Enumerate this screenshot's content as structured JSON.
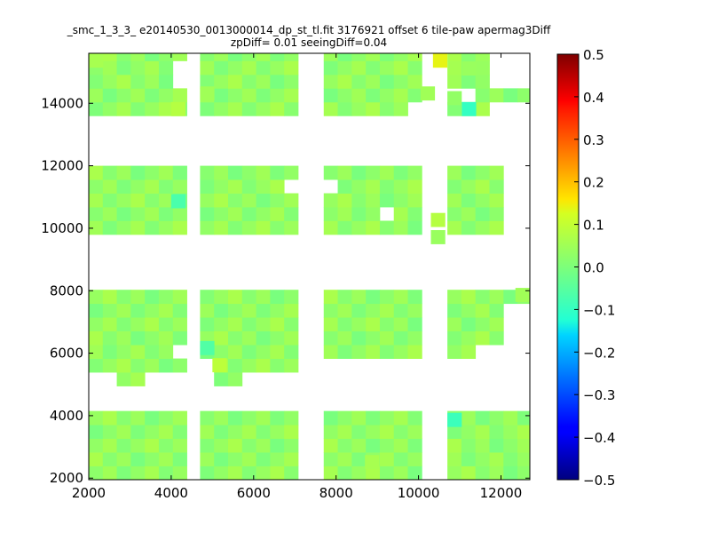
{
  "chart_data": {
    "type": "heatmap",
    "title": "_smc_1_3_3_ e20140530_0013000014_dp_st_tl.fit 3176921 offset 6 tile-paw apermag3Diff",
    "subtitle": "zpDiff= 0.01 seeingDiff=0.04",
    "xlabel": "",
    "ylabel": "",
    "xlim": [
      2000,
      12700
    ],
    "ylim": [
      1950,
      15600
    ],
    "x_ticks": [
      2000,
      4000,
      6000,
      8000,
      10000,
      12000
    ],
    "y_ticks": [
      2000,
      4000,
      6000,
      8000,
      10000,
      12000,
      14000
    ],
    "x_tick_labels": [
      "2000",
      "4000",
      "6000",
      "8000",
      "10000",
      "12000"
    ],
    "y_tick_labels": [
      "2000",
      "4000",
      "6000",
      "8000",
      "10000",
      "12000",
      "14000"
    ],
    "cell_size": [
      340,
      440
    ],
    "grid": false,
    "colorbar": {
      "colormap": "jet",
      "range": [
        -0.5,
        0.5
      ],
      "ticks": [
        0.5,
        0.4,
        0.3,
        0.2,
        0.1,
        0.0,
        -0.1,
        -0.2,
        -0.3,
        -0.4,
        -0.5
      ],
      "tick_labels": [
        "0.5",
        "0.4",
        "0.3",
        "0.2",
        "0.1",
        "0.0",
        "−0.1",
        "−0.2",
        "−0.3",
        "−0.4",
        "−0.5"
      ]
    },
    "tile_columns": [
      {
        "x0": 2000,
        "x1": 4350
      },
      {
        "x0": 4700,
        "x1": 7000
      },
      {
        "x0": 7700,
        "x1": 10050
      },
      {
        "x0": 10700,
        "x1": 12700
      }
    ],
    "tile_rows": [
      {
        "y0": 1950,
        "y1": 4050
      },
      {
        "y0": 4950,
        "y1": 7950
      },
      {
        "y0": 9800,
        "y1": 11850
      },
      {
        "y0": 13600,
        "y1": 15600
      }
    ],
    "base_value": 0.03,
    "holes": [
      {
        "x0": 4350,
        "x1": 4700,
        "y0": 1950,
        "y1": 3700
      },
      {
        "x0": 7000,
        "x1": 7700,
        "y0": 1950,
        "y1": 4050
      },
      {
        "x0": 2000,
        "x1": 2700,
        "y0": 4950,
        "y1": 5400
      },
      {
        "x0": 3400,
        "x1": 4350,
        "y0": 4950,
        "y1": 5400
      },
      {
        "x0": 4350,
        "x1": 4700,
        "y0": 4950,
        "y1": 6400
      },
      {
        "x0": 4700,
        "x1": 5000,
        "y0": 4950,
        "y1": 5900
      },
      {
        "x0": 5700,
        "x1": 7000,
        "y0": 4950,
        "y1": 5400
      },
      {
        "x0": 7000,
        "x1": 7700,
        "y0": 4950,
        "y1": 7950
      },
      {
        "x0": 4000,
        "x1": 4350,
        "y0": 5900,
        "y1": 6400
      },
      {
        "x0": 10700,
        "x1": 12700,
        "y0": 4950,
        "y1": 5900
      },
      {
        "x0": 7700,
        "x1": 10050,
        "y0": 4950,
        "y1": 5900
      },
      {
        "x0": 11500,
        "x1": 12700,
        "y0": 5900,
        "y1": 6400
      },
      {
        "x0": 12000,
        "x1": 12700,
        "y0": 6400,
        "y1": 7700
      },
      {
        "x0": 4350,
        "x1": 4700,
        "y0": 9800,
        "y1": 11850
      },
      {
        "x0": 7000,
        "x1": 7700,
        "y0": 9800,
        "y1": 11850
      },
      {
        "x0": 6650,
        "x1": 7000,
        "y0": 11050,
        "y1": 11500
      },
      {
        "x0": 7700,
        "x1": 8050,
        "y0": 11050,
        "y1": 11500
      },
      {
        "x0": 8950,
        "x1": 9300,
        "y0": 10150,
        "y1": 10500
      },
      {
        "x0": 12000,
        "x1": 12700,
        "y0": 9800,
        "y1": 11850
      },
      {
        "x0": 4350,
        "x1": 4700,
        "y0": 13600,
        "y1": 14100
      },
      {
        "x0": 4350,
        "x1": 4700,
        "y0": 15150,
        "y1": 15600
      },
      {
        "x0": 4000,
        "x1": 4700,
        "y0": 14550,
        "y1": 15150
      },
      {
        "x0": 7000,
        "x1": 7700,
        "y0": 13600,
        "y1": 15600
      },
      {
        "x0": 9700,
        "x1": 10050,
        "y0": 13600,
        "y1": 14100
      },
      {
        "x0": 10050,
        "x1": 10700,
        "y0": 13600,
        "y1": 14550
      },
      {
        "x0": 10700,
        "x1": 11350,
        "y0": 14100,
        "y1": 14550
      },
      {
        "x0": 11700,
        "x1": 12700,
        "y0": 13600,
        "y1": 14100
      },
      {
        "x0": 11700,
        "x1": 12700,
        "y0": 14550,
        "y1": 15600
      }
    ],
    "extra_cells": [
      {
        "x": 10700,
        "y": 13950,
        "v": 0.03
      },
      {
        "x": 10050,
        "y": 14100,
        "v": 0.05
      },
      {
        "x": 11050,
        "y": 14900,
        "v": 0.04
      },
      {
        "x": 10300,
        "y": 9500,
        "v": 0.04
      },
      {
        "x": 12350,
        "y": 7650,
        "v": 0.05
      }
    ],
    "highlight_cells": [
      {
        "x": 10350,
        "y": 15150,
        "v": 0.14
      },
      {
        "x": 4000,
        "y": 13600,
        "v": 0.08
      },
      {
        "x": 11050,
        "y": 13600,
        "v": -0.1
      },
      {
        "x": 10300,
        "y": 10050,
        "v": 0.08
      },
      {
        "x": 4000,
        "y": 10650,
        "v": -0.07
      },
      {
        "x": 4700,
        "y": 5950,
        "v": -0.06
      },
      {
        "x": 4700,
        "y": 14100,
        "v": 0.05
      },
      {
        "x": 10700,
        "y": 3650,
        "v": -0.09
      },
      {
        "x": 5000,
        "y": 5400,
        "v": 0.09
      },
      {
        "x": 2000,
        "y": 15150,
        "v": 0.06
      },
      {
        "x": 8700,
        "y": 2300,
        "v": 0.06
      }
    ]
  }
}
